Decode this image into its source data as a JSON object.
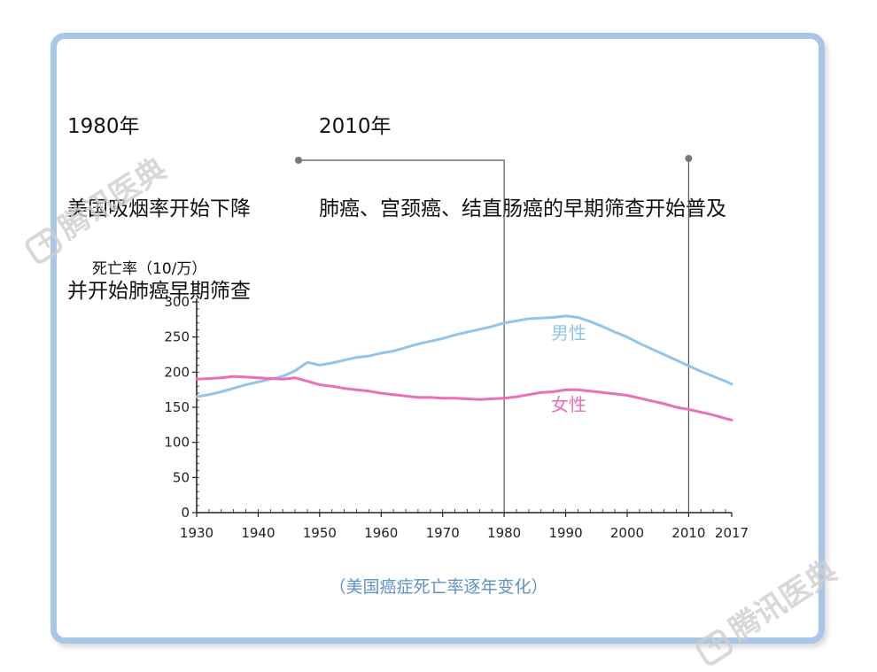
{
  "annotations": {
    "a1980": {
      "year": "1980年",
      "line1": "美国吸烟率开始下降",
      "line2": "并开始肺癌早期筛查"
    },
    "a2010": {
      "year": "2010年",
      "line1": "肺癌、宫颈癌、结直肠癌的早期筛查开始普及"
    }
  },
  "caption": "（美国癌症死亡率逐年变化）",
  "watermark": "腾讯医典",
  "colors": {
    "male": "#93c4ea",
    "female": "#ea6fb6",
    "frame": "#a9c6e6",
    "caption": "#5f93c7",
    "axis": "#222222"
  },
  "chart_data": {
    "type": "line",
    "ylabel": "死亡率（10/万）",
    "xlim": [
      1930,
      2017
    ],
    "ylim": [
      0,
      300
    ],
    "x_ticks": [
      1930,
      1940,
      1950,
      1960,
      1970,
      1980,
      1990,
      2000,
      2010,
      2017
    ],
    "y_ticks": [
      0,
      50,
      100,
      150,
      200,
      250,
      300
    ],
    "reference_lines": [
      1980,
      2010
    ],
    "series": [
      {
        "name": "男性",
        "color": "#93c4ea",
        "x": [
          1930,
          1932,
          1934,
          1936,
          1938,
          1940,
          1942,
          1944,
          1946,
          1948,
          1950,
          1952,
          1954,
          1956,
          1958,
          1960,
          1962,
          1964,
          1966,
          1968,
          1970,
          1972,
          1974,
          1976,
          1978,
          1980,
          1982,
          1984,
          1986,
          1988,
          1990,
          1992,
          1994,
          1996,
          1998,
          2000,
          2002,
          2004,
          2006,
          2008,
          2010,
          2012,
          2014,
          2016,
          2017
        ],
        "values": [
          165,
          168,
          172,
          177,
          182,
          186,
          190,
          194,
          202,
          214,
          210,
          213,
          217,
          221,
          223,
          227,
          230,
          235,
          240,
          244,
          248,
          253,
          257,
          261,
          265,
          270,
          273,
          276,
          277,
          278,
          280,
          278,
          272,
          265,
          257,
          250,
          241,
          233,
          225,
          217,
          209,
          201,
          194,
          187,
          183
        ]
      },
      {
        "name": "女性",
        "color": "#ea6fb6",
        "x": [
          1930,
          1932,
          1934,
          1936,
          1938,
          1940,
          1942,
          1944,
          1946,
          1948,
          1950,
          1952,
          1954,
          1956,
          1958,
          1960,
          1962,
          1964,
          1966,
          1968,
          1970,
          1972,
          1974,
          1976,
          1978,
          1980,
          1982,
          1984,
          1986,
          1988,
          1990,
          1992,
          1994,
          1996,
          1998,
          2000,
          2002,
          2004,
          2006,
          2008,
          2010,
          2012,
          2014,
          2016,
          2017
        ],
        "values": [
          190,
          191,
          192,
          194,
          193,
          192,
          191,
          190,
          192,
          187,
          182,
          180,
          177,
          175,
          173,
          170,
          168,
          166,
          164,
          164,
          163,
          163,
          162,
          161,
          162,
          163,
          165,
          168,
          171,
          172,
          175,
          175,
          173,
          171,
          169,
          167,
          163,
          159,
          155,
          150,
          147,
          143,
          139,
          134,
          132
        ]
      }
    ]
  }
}
